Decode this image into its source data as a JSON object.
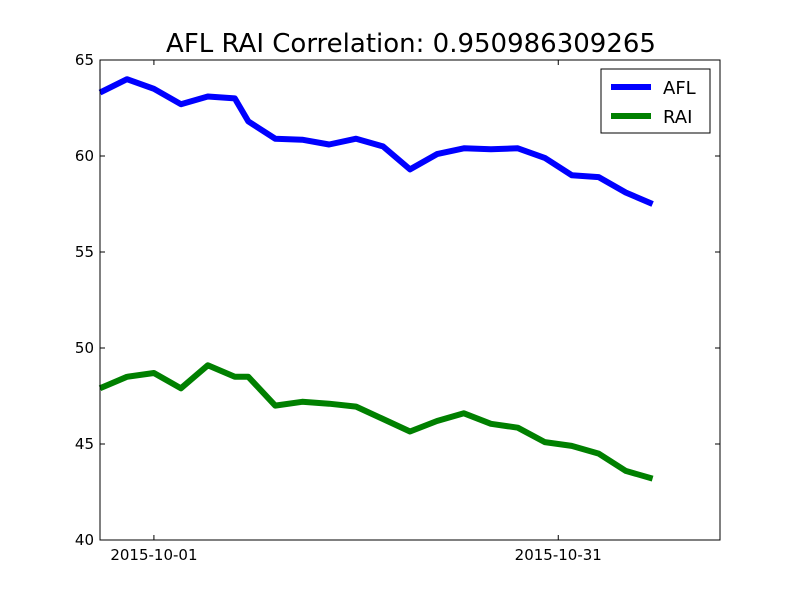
{
  "chart_data": {
    "type": "line",
    "title": "AFL RAI Correlation: 0.950986309265",
    "xlabel": "",
    "ylabel": "",
    "ylim": [
      40,
      65
    ],
    "yticks": [
      40,
      45,
      50,
      55,
      60,
      65
    ],
    "xlim": [
      "2015-09-27",
      "2015-11-12"
    ],
    "xticks": [
      "2015-10-01",
      "2015-10-31"
    ],
    "x": [
      "2015-09-27",
      "2015-09-28",
      "2015-09-30",
      "2015-10-01",
      "2015-10-02",
      "2015-10-05",
      "2015-10-06",
      "2015-10-07",
      "2015-10-08",
      "2015-10-09",
      "2015-10-12",
      "2015-10-13",
      "2015-10-14",
      "2015-10-15",
      "2015-10-16",
      "2015-10-19",
      "2015-10-20",
      "2015-10-21",
      "2015-10-22",
      "2015-10-23",
      "2015-10-26",
      "2015-10-27",
      "2015-10-28",
      "2015-10-29",
      "2015-10-30",
      "2015-11-02",
      "2015-11-03",
      "2015-11-04",
      "2015-11-05",
      "2015-11-06"
    ],
    "grid": false,
    "legend_position": "top-right",
    "series": [
      {
        "name": "AFL",
        "color": "#0000ff",
        "points": [
          [
            "2015-09-27",
            63.3
          ],
          [
            "2015-09-29",
            64.0
          ],
          [
            "2015-10-01",
            63.5
          ],
          [
            "2015-10-03",
            62.7
          ],
          [
            "2015-10-05",
            63.1
          ],
          [
            "2015-10-07",
            63.0
          ],
          [
            "2015-10-08",
            61.8
          ],
          [
            "2015-10-10",
            60.9
          ],
          [
            "2015-10-12",
            60.85
          ],
          [
            "2015-10-14",
            60.6
          ],
          [
            "2015-10-16",
            60.9
          ],
          [
            "2015-10-18",
            60.5
          ],
          [
            "2015-10-20",
            59.3
          ],
          [
            "2015-10-22",
            60.1
          ],
          [
            "2015-10-24",
            60.4
          ],
          [
            "2015-10-26",
            60.35
          ],
          [
            "2015-10-28",
            60.4
          ],
          [
            "2015-10-30",
            59.9
          ],
          [
            "2015-11-01",
            59.0
          ],
          [
            "2015-11-03",
            58.9
          ],
          [
            "2015-11-05",
            58.1
          ],
          [
            "2015-11-07",
            57.5
          ]
        ]
      },
      {
        "name": "RAI",
        "color": "#008000",
        "points": [
          [
            "2015-09-27",
            47.9
          ],
          [
            "2015-09-29",
            48.5
          ],
          [
            "2015-10-01",
            48.7
          ],
          [
            "2015-10-03",
            47.9
          ],
          [
            "2015-10-05",
            49.1
          ],
          [
            "2015-10-07",
            48.5
          ],
          [
            "2015-10-08",
            48.5
          ],
          [
            "2015-10-10",
            47.0
          ],
          [
            "2015-10-12",
            47.2
          ],
          [
            "2015-10-14",
            47.1
          ],
          [
            "2015-10-16",
            46.95
          ],
          [
            "2015-10-18",
            46.3
          ],
          [
            "2015-10-20",
            45.65
          ],
          [
            "2015-10-22",
            46.2
          ],
          [
            "2015-10-24",
            46.6
          ],
          [
            "2015-10-26",
            46.05
          ],
          [
            "2015-10-28",
            45.85
          ],
          [
            "2015-10-30",
            45.1
          ],
          [
            "2015-11-01",
            44.9
          ],
          [
            "2015-11-03",
            44.5
          ],
          [
            "2015-11-05",
            43.6
          ],
          [
            "2015-11-07",
            43.2
          ]
        ]
      }
    ]
  }
}
